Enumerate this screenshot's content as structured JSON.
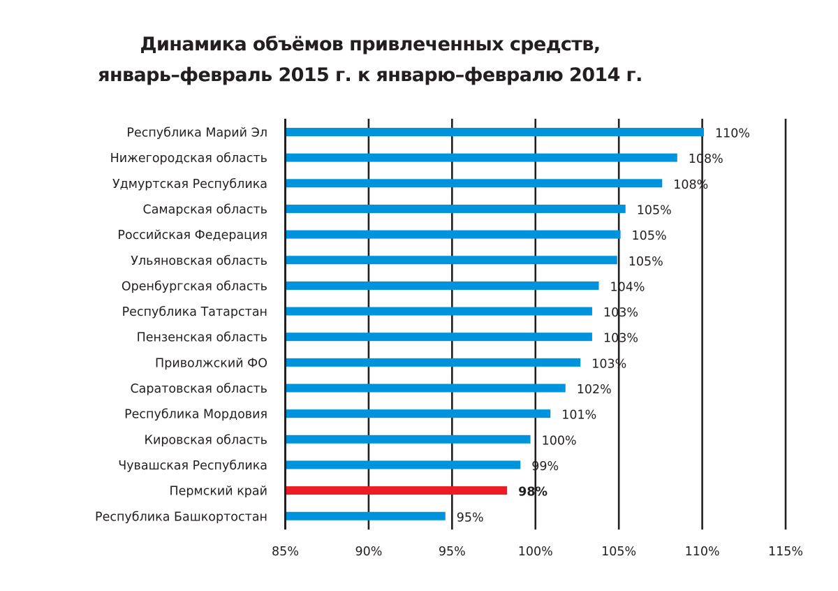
{
  "chart_data": {
    "type": "bar",
    "orientation": "horizontal",
    "title_line1": "Динамика объёмов привлеченных средств,",
    "title_line2": "январь–февраль 2015 г. к январю–февралю 2014 г.",
    "xlabel": "",
    "ylabel": "",
    "xlim": [
      85,
      115
    ],
    "x_ticks": [
      85,
      90,
      95,
      100,
      105,
      110,
      115
    ],
    "x_tick_labels": [
      "85%",
      "90%",
      "95%",
      "100%",
      "105%",
      "110%",
      "115%"
    ],
    "grid": "vertical",
    "legend": "none",
    "colors": {
      "default": "#0093dd",
      "highlight": "#ed1c24",
      "grid": "#231f20",
      "text": "#231f20"
    },
    "categories": [
      "Республика Марий Эл",
      "Нижегородская область",
      "Удмуртская Республика",
      "Самарская область",
      "Российская Федерация",
      "Ульяновская область",
      "Оренбургская область",
      "Республика Татарстан",
      "Пензенская область",
      "Приволжский ФО",
      "Саратовская область",
      "Республика Мордовия",
      "Кировская область",
      "Чувашская Республика",
      "Пермский край",
      "Республика Башкортостан"
    ],
    "values": [
      110.1,
      108.5,
      107.6,
      105.4,
      105.1,
      104.9,
      103.8,
      103.4,
      103.4,
      102.7,
      101.8,
      100.9,
      99.7,
      99.1,
      98.3,
      94.6
    ],
    "data_labels": [
      "110%",
      "108%",
      "108%",
      "105%",
      "105%",
      "105%",
      "104%",
      "103%",
      "103%",
      "103%",
      "102%",
      "101%",
      "100%",
      "99%",
      "98%",
      "95%"
    ],
    "highlight_index": 14
  }
}
